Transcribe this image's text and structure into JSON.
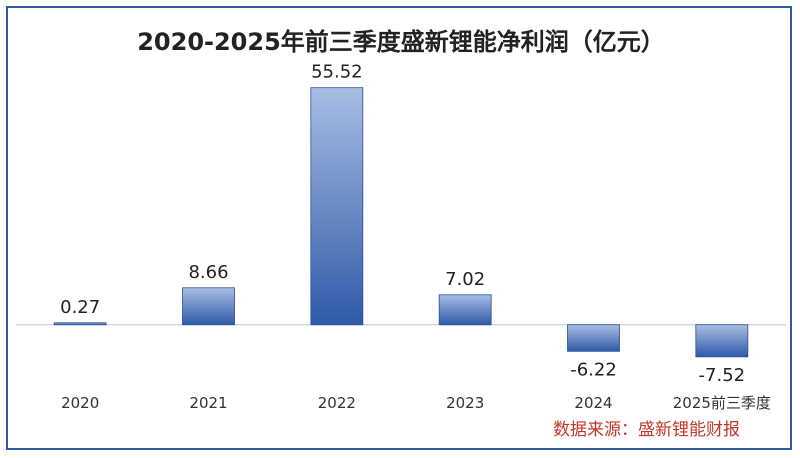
{
  "chart_data": {
    "type": "bar",
    "title": "2020-2025年前三季度盛新锂能净利润（亿元）",
    "categories": [
      "2020",
      "2021",
      "2022",
      "2023",
      "2024",
      "2025前三季度"
    ],
    "values": [
      0.27,
      8.66,
      55.52,
      7.02,
      -6.22,
      -7.52
    ],
    "value_labels": [
      "0.27",
      "8.66",
      "55.52",
      "7.02",
      "-6.22",
      "-7.52"
    ],
    "ylim": [
      -12,
      62
    ],
    "grid": false,
    "legend": "none",
    "xlabel": "",
    "ylabel": "",
    "colors": {
      "bar_top": "#a8bde3",
      "bar_bottom": "#2f5aa8",
      "bar_edge": "#2b4f93",
      "frame": "#2f5aa8",
      "baseline": "#d0d8e4"
    }
  },
  "source": "数据来源：盛新锂能财报"
}
